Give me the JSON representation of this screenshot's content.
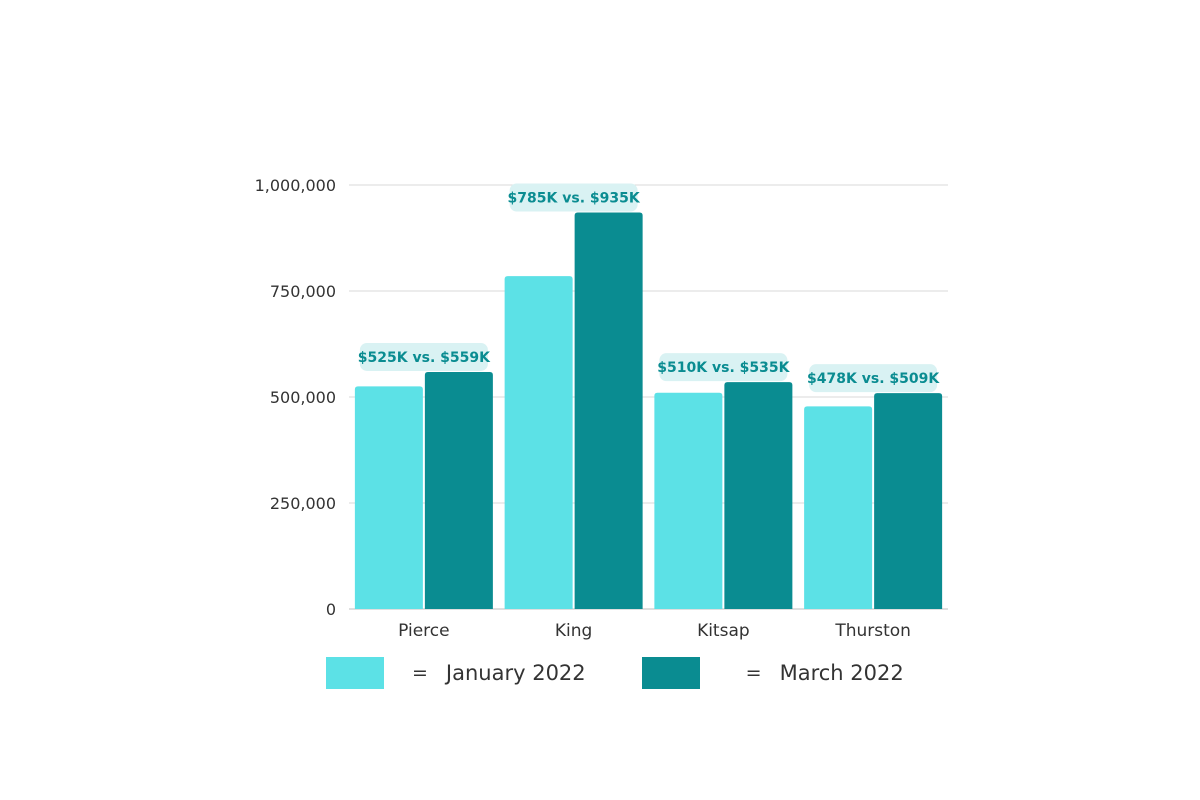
{
  "chart_data": {
    "type": "bar",
    "categories": [
      "Pierce",
      "King",
      "Kitsap",
      "Thurston"
    ],
    "series": [
      {
        "name": "January 2022",
        "values": [
          525000,
          785000,
          510000,
          478000
        ]
      },
      {
        "name": "March 2022",
        "values": [
          559000,
          935000,
          535000,
          509000
        ]
      }
    ],
    "data_labels": [
      "$525K vs. $559K",
      "$785K vs. $935K",
      "$510K vs. $535K",
      "$478K vs. $509K"
    ],
    "title": "",
    "xlabel": "",
    "ylabel": "",
    "ylim": [
      0,
      1000000
    ],
    "yticks": [
      0,
      250000,
      500000,
      750000,
      1000000
    ],
    "ytick_labels": [
      "0",
      "250,000",
      "500,000",
      "750,000",
      "1,000,000"
    ],
    "grid": true,
    "legend_position": "bottom",
    "colors": {
      "january": "#5ce1e6",
      "march": "#0a8c91",
      "label_bg": "#d9f2f3",
      "label_text": "#0a8c91",
      "grid": "#d9d9d9",
      "axis_text": "#333333"
    }
  },
  "legend": {
    "items": [
      {
        "eq": "=",
        "label": "January 2022",
        "color": "#5ce1e6"
      },
      {
        "eq": "=",
        "label": "March 2022",
        "color": "#0a8c91"
      }
    ]
  }
}
